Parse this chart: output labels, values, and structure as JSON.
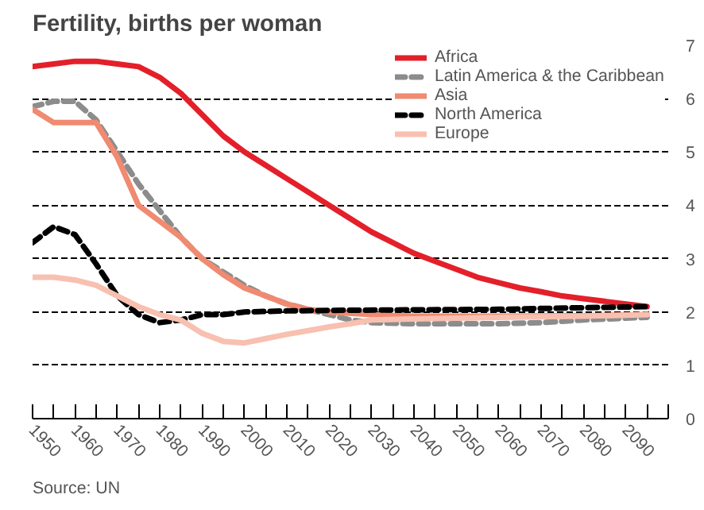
{
  "chart_data": {
    "type": "line",
    "title": "Fertility, births per woman",
    "annotations": [
      "Source: UN"
    ],
    "xlim": [
      1950,
      2100
    ],
    "xticks": [
      1950,
      {
        "value": 1955,
        "label": null
      },
      1960,
      {
        "value": 1965,
        "label": null
      },
      1970,
      {
        "value": 1975,
        "label": null
      },
      1980,
      {
        "value": 1985,
        "label": null
      },
      1990,
      {
        "value": 1995,
        "label": null
      },
      2000,
      {
        "value": 2005,
        "label": null
      },
      2010,
      {
        "value": 2015,
        "label": null
      },
      2020,
      {
        "value": 2025,
        "label": null
      },
      2030,
      {
        "value": 2035,
        "label": null
      },
      2040,
      {
        "value": 2045,
        "label": null
      },
      2050,
      {
        "value": 2055,
        "label": null
      },
      2060,
      {
        "value": 2065,
        "label": null
      },
      2070,
      {
        "value": 2075,
        "label": null
      },
      2080,
      {
        "value": 2085,
        "label": null
      },
      2090,
      {
        "value": 2095,
        "label": null
      },
      {
        "value": 2100,
        "label": null
      }
    ],
    "ylim": [
      0,
      7
    ],
    "yticks": [
      0,
      1,
      2,
      3,
      4,
      5,
      6,
      7
    ],
    "grid": "y",
    "legend": "top right",
    "series": [
      {
        "name": "Africa",
        "color": "#e3202a",
        "line_style": "solid",
        "x": [
          1950,
          1955,
          1960,
          1965,
          1970,
          1975,
          1980,
          1985,
          1990,
          1995,
          2000,
          2005,
          2010,
          2015,
          2020,
          2025,
          2030,
          2035,
          2040,
          2045,
          2050,
          2055,
          2060,
          2065,
          2070,
          2075,
          2080,
          2085,
          2090,
          2095
        ],
        "values": [
          6.6,
          6.65,
          6.7,
          6.7,
          6.65,
          6.6,
          6.4,
          6.1,
          5.7,
          5.3,
          5.0,
          4.75,
          4.5,
          4.25,
          4.0,
          3.75,
          3.5,
          3.3,
          3.1,
          2.95,
          2.8,
          2.65,
          2.55,
          2.45,
          2.38,
          2.3,
          2.25,
          2.2,
          2.15,
          2.1
        ]
      },
      {
        "name": "Latin America & the Caribbean",
        "color": "#8c8c8c",
        "line_style": "dashed",
        "x": [
          1950,
          1955,
          1960,
          1965,
          1970,
          1975,
          1980,
          1985,
          1990,
          1995,
          2000,
          2005,
          2010,
          2015,
          2020,
          2025,
          2030,
          2040,
          2050,
          2060,
          2070,
          2080,
          2095
        ],
        "values": [
          5.85,
          5.95,
          5.95,
          5.6,
          5.0,
          4.4,
          3.9,
          3.4,
          3.0,
          2.75,
          2.5,
          2.3,
          2.15,
          2.05,
          1.95,
          1.85,
          1.8,
          1.78,
          1.78,
          1.78,
          1.8,
          1.85,
          1.9
        ]
      },
      {
        "name": "Asia",
        "color": "#f08a70",
        "line_style": "solid",
        "x": [
          1950,
          1955,
          1960,
          1965,
          1970,
          1975,
          1980,
          1985,
          1990,
          1995,
          2000,
          2005,
          2010,
          2015,
          2020,
          2030,
          2040,
          2060,
          2080,
          2095
        ],
        "values": [
          5.8,
          5.55,
          5.55,
          5.55,
          4.9,
          4.0,
          3.7,
          3.4,
          3.0,
          2.7,
          2.45,
          2.3,
          2.15,
          2.05,
          2.0,
          1.95,
          1.92,
          1.92,
          1.93,
          1.95
        ]
      },
      {
        "name": "North America",
        "color": "#000000",
        "line_style": "dashed",
        "x": [
          1950,
          1955,
          1960,
          1965,
          1970,
          1975,
          1980,
          1985,
          1990,
          1995,
          2000,
          2010,
          2020,
          2040,
          2060,
          2080,
          2095
        ],
        "values": [
          3.3,
          3.6,
          3.45,
          2.9,
          2.3,
          1.95,
          1.8,
          1.85,
          1.95,
          1.95,
          2.0,
          2.02,
          2.03,
          2.04,
          2.05,
          2.08,
          2.1
        ]
      },
      {
        "name": "Europe",
        "color": "#f8c0b0",
        "line_style": "solid",
        "x": [
          1950,
          1955,
          1960,
          1965,
          1970,
          1975,
          1980,
          1985,
          1990,
          1995,
          2000,
          2005,
          2010,
          2015,
          2020,
          2025,
          2030,
          2040,
          2060,
          2080,
          2095
        ],
        "values": [
          2.65,
          2.65,
          2.6,
          2.5,
          2.3,
          2.1,
          1.95,
          1.85,
          1.6,
          1.45,
          1.42,
          1.5,
          1.58,
          1.65,
          1.72,
          1.78,
          1.85,
          1.87,
          1.9,
          1.92,
          1.95
        ]
      }
    ]
  }
}
